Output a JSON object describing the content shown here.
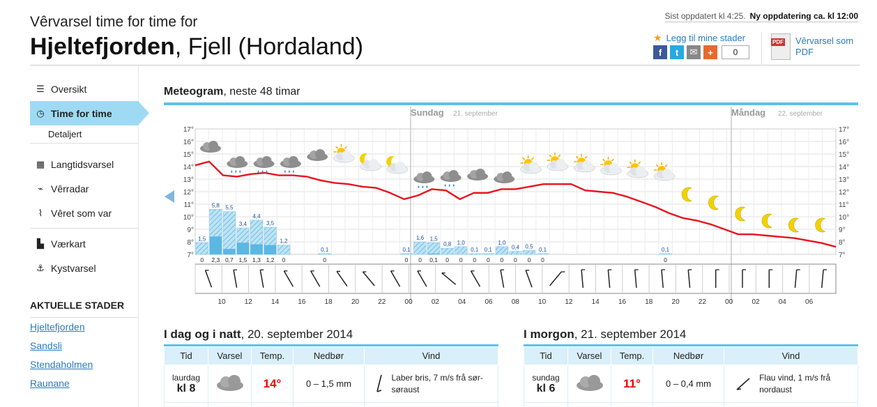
{
  "header": {
    "subtitle": "Vêrvarsel time for time for",
    "place_name": "Hjeltefjorden",
    "place_rest": ", Fjell (Hordaland)",
    "updated": "Sist oppdatert kl 4:25.",
    "next_update": "Ny oppdatering ca. kl 12:00",
    "favorite": "Legg til mine stader",
    "share_count": "0",
    "pdf_tag": "PDF",
    "pdf_label": "Vêrvarsel som PDF"
  },
  "sidebar": {
    "items": [
      {
        "label": "Oversikt",
        "icon": "list-icon"
      },
      {
        "label": "Time for time",
        "icon": "clock-icon"
      },
      {
        "label": "Detaljert"
      },
      {
        "label": "Langtidsvarsel",
        "icon": "calendar-icon"
      },
      {
        "label": "Vêrradar",
        "icon": "radar-icon"
      },
      {
        "label": "Vêret som var",
        "icon": "chart-icon"
      },
      {
        "label": "Værkart",
        "icon": "map-icon"
      },
      {
        "label": "Kystvarsel",
        "icon": "anchor-icon"
      }
    ],
    "recent_heading": "AKTUELLE STADER",
    "recent": [
      "Hjeltefjorden",
      "Sandsli",
      "Stendaholmen",
      "Raunane"
    ]
  },
  "meteogram": {
    "title_bold": "Meteogram",
    "title_rest": ", neste 48 timar",
    "day1": "Sundag",
    "day1_date": "21. september",
    "day2": "Måndag",
    "day2_date": "22. september"
  },
  "chart_data": {
    "type": "line",
    "y_ticks": [
      "7°",
      "8°",
      "9°",
      "10°",
      "11°",
      "12°",
      "13°",
      "14°",
      "15°",
      "16°",
      "17°"
    ],
    "ylim": [
      7,
      17
    ],
    "x_ticks": [
      "10",
      "12",
      "14",
      "16",
      "18",
      "20",
      "22",
      "00",
      "02",
      "04",
      "06",
      "08",
      "10",
      "12",
      "14",
      "16",
      "18",
      "20",
      "22",
      "00",
      "02",
      "04",
      "06"
    ],
    "temperature": [
      14.1,
      14.4,
      13.3,
      13.2,
      13.4,
      13.5,
      13.3,
      13.3,
      13.2,
      12.9,
      12.7,
      12.6,
      12.4,
      12.3,
      11.9,
      11.4,
      11.7,
      12.2,
      12.1,
      11.4,
      11.9,
      11.9,
      12.2,
      12.2,
      12.4,
      12.6,
      12.6,
      12.6,
      12.1,
      12.0,
      11.9,
      11.6,
      11.2,
      10.8,
      10.3,
      9.9,
      9.7,
      9.4,
      9.0,
      8.6,
      8.6,
      8.5,
      8.4,
      8.3,
      8.1,
      7.9,
      7.6
    ],
    "precip_max": [
      1.5,
      5.8,
      5.5,
      3.4,
      4.4,
      3.5,
      1.2,
      0,
      0,
      0.1,
      0,
      0,
      0,
      0,
      0,
      0.1,
      1.6,
      1.5,
      0.8,
      1.0,
      0.1,
      0.1,
      1.0,
      0.4,
      0.5,
      0.1,
      0,
      0,
      0,
      0,
      0,
      0,
      0,
      0,
      0.1
    ],
    "precip_min": [
      0,
      2.3,
      0.7,
      1.5,
      1.3,
      1.2,
      0,
      0,
      0,
      0,
      0,
      0,
      0,
      0,
      0,
      0,
      0,
      0.1,
      0,
      0,
      0,
      0,
      0,
      0,
      0,
      0,
      0,
      0,
      0,
      0,
      0,
      0,
      0,
      0,
      0
    ],
    "max_labels": [
      "1,5",
      "5,8",
      "5,5",
      "3,4",
      "4,4",
      "3,5",
      "1,2",
      "",
      "",
      "0,1",
      "",
      "",
      "",
      "",
      "",
      "0,1",
      "1,6",
      "1,5",
      "0,8",
      "1,0",
      "0,1",
      "0,1",
      "1,0",
      "0,4",
      "0,5",
      "0,1",
      "",
      "",
      "",
      "",
      "",
      "",
      "",
      "",
      "0,1"
    ],
    "min_labels": [
      "0",
      "2,3",
      "0,7",
      "1,5",
      "1,3",
      "1,2",
      "0",
      "",
      "",
      "0",
      "",
      "",
      "",
      "",
      "",
      "0",
      "0",
      "0,1",
      "0",
      "0",
      "0",
      "0",
      "0",
      "0",
      "0",
      "0",
      "",
      "",
      "",
      "",
      "",
      "",
      "",
      "",
      "0"
    ],
    "symbols": [
      "cloud",
      "cloud-rain",
      "cloud-rain",
      "cloud-rain",
      "cloud",
      "sun-cloud",
      "moon-cloud",
      "moon-cloud",
      "cloud-rain",
      "cloud-rain",
      "cloud",
      "cloud",
      "sun-cloud",
      "sun-cloud",
      "sun-cloud",
      "sun-cloud",
      "sun-cloud",
      "sun-cloud",
      "moon",
      "moon",
      "moon",
      "moon",
      "moon",
      "moon"
    ]
  },
  "colors": {
    "accent": "#5bc2ec",
    "temp_line": "#e8141e",
    "link": "#2a7bbf"
  },
  "today": {
    "title_bold": "I dag og i natt",
    "title_rest": ", 20. september 2014",
    "headers": [
      "Tid",
      "Varsel",
      "Temp.",
      "Nedbør",
      "Vind"
    ],
    "row": {
      "day": "laurdag",
      "time": "kl 8",
      "temp": "14°",
      "precip": "0 – 1,5 mm",
      "wind": "Laber bris, 7 m/s frå sør-søraust"
    }
  },
  "tomorrow": {
    "title_bold": "I morgon",
    "title_rest": ", 21. september 2014",
    "headers": [
      "Tid",
      "Varsel",
      "Temp.",
      "Nedbør",
      "Vind"
    ],
    "row": {
      "day": "sundag",
      "time": "kl 6",
      "temp": "11°",
      "precip": "0 – 0,4 mm",
      "wind": "Flau vind, 1 m/s frå nordaust"
    }
  }
}
